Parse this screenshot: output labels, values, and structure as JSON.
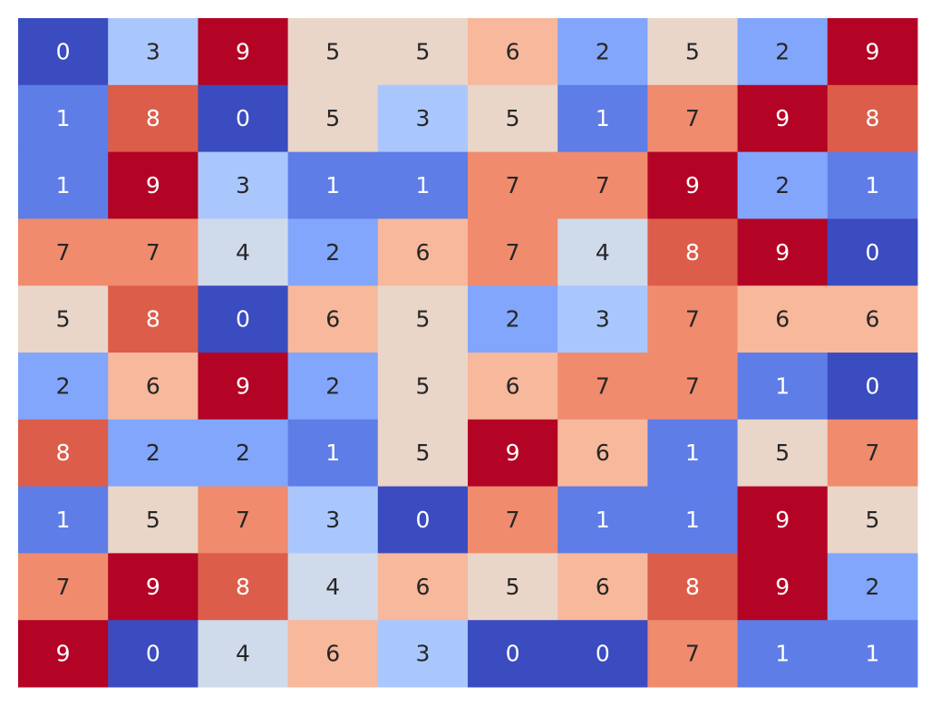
{
  "chart_data": {
    "type": "heatmap",
    "values": [
      [
        0,
        3,
        9,
        5,
        5,
        6,
        2,
        5,
        2,
        9
      ],
      [
        1,
        8,
        0,
        5,
        3,
        5,
        1,
        7,
        9,
        8
      ],
      [
        1,
        9,
        3,
        1,
        1,
        7,
        7,
        9,
        2,
        1
      ],
      [
        7,
        7,
        4,
        2,
        6,
        7,
        4,
        8,
        9,
        0
      ],
      [
        5,
        8,
        0,
        6,
        5,
        2,
        3,
        7,
        6,
        6
      ],
      [
        2,
        6,
        9,
        2,
        5,
        6,
        7,
        7,
        1,
        0
      ],
      [
        8,
        2,
        2,
        1,
        5,
        9,
        6,
        1,
        5,
        7
      ],
      [
        1,
        5,
        7,
        3,
        0,
        7,
        1,
        1,
        9,
        5
      ],
      [
        7,
        9,
        8,
        4,
        6,
        5,
        6,
        8,
        9,
        2
      ],
      [
        9,
        0,
        4,
        6,
        3,
        0,
        0,
        7,
        1,
        1
      ]
    ],
    "colormap": [
      "#3b4cc0",
      "#5e7de7",
      "#82a6fb",
      "#aac7fd",
      "#cfdaea",
      "#ead5c9",
      "#f7b89c",
      "#f08b6e",
      "#dc5d4a",
      "#b40426"
    ]
  }
}
